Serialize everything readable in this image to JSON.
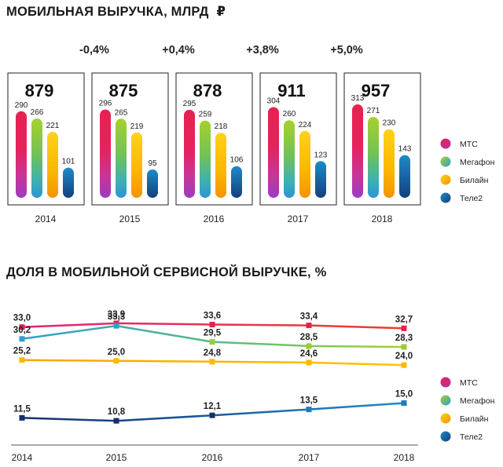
{
  "colors": {
    "mts": "#e0245e",
    "megafon": "#8cc63f",
    "beeline": "#fbb900",
    "tele2": "#1f4e8c"
  },
  "chart_data": [
    {
      "type": "bar",
      "title": "МОБИЛЬНАЯ ВЫРУЧКА, МЛРД",
      "unit_suffix": "₽",
      "categories": [
        "2014",
        "2015",
        "2016",
        "2017",
        "2018"
      ],
      "totals": [
        "879",
        "875",
        "878",
        "911",
        "957"
      ],
      "growth": [
        "-0,4%",
        "+0,4%",
        "+3,8%",
        "+5,0%"
      ],
      "series": [
        {
          "name": "МТС",
          "values": [
            290,
            296,
            295,
            304,
            313
          ]
        },
        {
          "name": "Мегафон",
          "values": [
            266,
            265,
            259,
            260,
            271
          ]
        },
        {
          "name": "Билайн",
          "values": [
            221,
            219,
            218,
            224,
            230
          ]
        },
        {
          "name": "Теле2",
          "values": [
            101,
            95,
            106,
            123,
            143
          ]
        }
      ],
      "legend_position": "right"
    },
    {
      "type": "line",
      "title": "ДОЛЯ В МОБИЛЬНОЙ СЕРВИСНОЙ ВЫРУЧКЕ, %",
      "x": [
        "2014",
        "2015",
        "2016",
        "2017",
        "2018"
      ],
      "series": [
        {
          "name": "МТС",
          "values": [
            33.0,
            33.9,
            33.6,
            33.4,
            32.7
          ],
          "labels": [
            "33,0",
            "33,9",
            "33,6",
            "33,4",
            "32,7"
          ]
        },
        {
          "name": "Мегафон",
          "values": [
            30.2,
            33.3,
            29.5,
            28.5,
            28.3
          ],
          "labels": [
            "30,2",
            "33,3",
            "29,5",
            "28,5",
            "28,3"
          ]
        },
        {
          "name": "Билайн",
          "values": [
            25.2,
            25.0,
            24.8,
            24.6,
            24.0
          ],
          "labels": [
            "25,2",
            "25,0",
            "24,8",
            "24,6",
            "24,0"
          ]
        },
        {
          "name": "Теле2",
          "values": [
            11.5,
            10.8,
            12.1,
            13.5,
            15.0
          ],
          "labels": [
            "11,5",
            "10,8",
            "12,1",
            "13,5",
            "15,0"
          ]
        }
      ],
      "legend_position": "right"
    }
  ]
}
